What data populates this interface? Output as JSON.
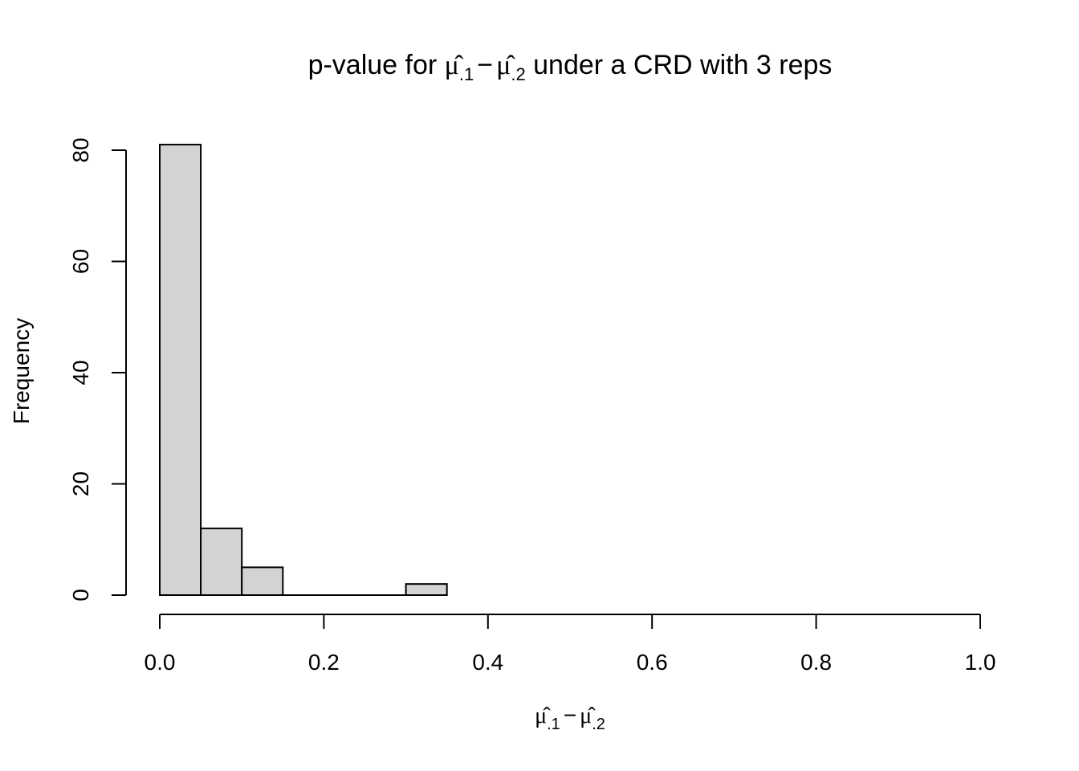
{
  "chart_data": {
    "type": "bar",
    "title": {
      "prefix": "p-value for ",
      "term1_symbol": "μ̂",
      "term1_sub": ".1",
      "minus": "−",
      "term2_symbol": "μ̂",
      "term2_sub": ".2",
      "suffix": " under a CRD with 3 reps"
    },
    "xlabel": {
      "term1_symbol": "μ̂",
      "term1_sub": ".1",
      "minus": "−",
      "term2_symbol": "μ̂",
      "term2_sub": ".2"
    },
    "ylabel": "Frequency",
    "bin_width": 0.05,
    "bins": [
      {
        "start": 0.0,
        "end": 0.05,
        "count": 81
      },
      {
        "start": 0.05,
        "end": 0.1,
        "count": 12
      },
      {
        "start": 0.1,
        "end": 0.15,
        "count": 5
      },
      {
        "start": 0.15,
        "end": 0.2,
        "count": 0
      },
      {
        "start": 0.2,
        "end": 0.25,
        "count": 0
      },
      {
        "start": 0.25,
        "end": 0.3,
        "count": 0
      },
      {
        "start": 0.3,
        "end": 0.35,
        "count": 2
      }
    ],
    "xlim": [
      0,
      1
    ],
    "ylim": [
      0,
      80
    ],
    "x_ticks": [
      "0.0",
      "0.2",
      "0.4",
      "0.6",
      "0.8",
      "1.0"
    ],
    "y_ticks": [
      "0",
      "20",
      "40",
      "60",
      "80"
    ],
    "grid": false,
    "legend": "none",
    "bar_fill": "#d3d3d3",
    "bar_stroke": "#000000"
  }
}
